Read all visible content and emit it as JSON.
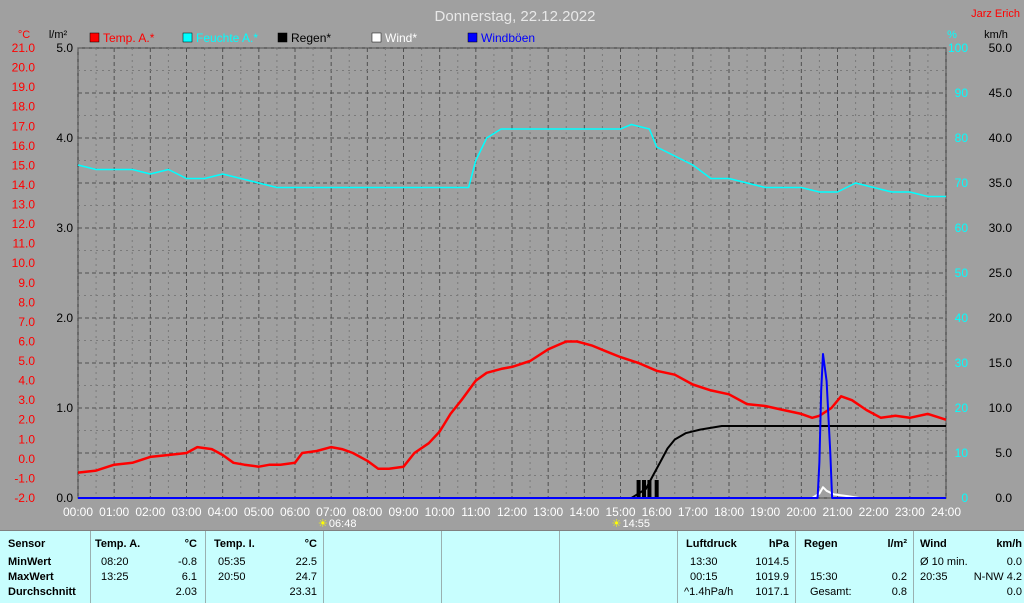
{
  "chart_data": {
    "type": "line",
    "title": "Donnerstag, 22.12.2022",
    "author": "Jarz Erich",
    "x_ticks": [
      "00:00",
      "01:00",
      "02:00",
      "03:00",
      "04:00",
      "05:00",
      "06:00",
      "07:00",
      "08:00",
      "09:00",
      "10:00",
      "11:00",
      "12:00",
      "13:00",
      "14:00",
      "15:00",
      "16:00",
      "17:00",
      "18:00",
      "19:00",
      "20:00",
      "21:00",
      "22:00",
      "23:00",
      "24:00"
    ],
    "axes": {
      "temp": {
        "label": "°C",
        "ylim": [
          -2.0,
          21.0
        ],
        "ticks": [
          "-2.0",
          "-1.0",
          "0.0",
          "1.0",
          "2.0",
          "3.0",
          "4.0",
          "5.0",
          "6.0",
          "7.0",
          "8.0",
          "9.0",
          "10.0",
          "11.0",
          "12.0",
          "13.0",
          "14.0",
          "15.0",
          "16.0",
          "17.0",
          "18.0",
          "19.0",
          "20.0",
          "21.0"
        ],
        "color": "#ff0000"
      },
      "rain": {
        "label": "l/m²",
        "ylim": [
          0,
          5.0
        ],
        "ticks": [
          "0.0",
          "1.0",
          "2.0",
          "3.0",
          "4.0",
          "5.0"
        ],
        "color": "#000000"
      },
      "humidity": {
        "label": "%",
        "ylim": [
          0,
          100
        ],
        "ticks": [
          "0",
          "10",
          "20",
          "30",
          "40",
          "50",
          "60",
          "70",
          "80",
          "90",
          "100"
        ],
        "color": "#00e0e0"
      },
      "wind": {
        "label": "km/h",
        "ylim": [
          0,
          50.0
        ],
        "ticks": [
          "0.0",
          "5.0",
          "10.0",
          "15.0",
          "20.0",
          "25.0",
          "30.0",
          "35.0",
          "40.0",
          "45.0",
          "50.0"
        ],
        "color": "#000000"
      }
    },
    "legend": [
      {
        "name": "Temp. A.*",
        "color": "#ff0000"
      },
      {
        "name": "Feuchte A.*",
        "color": "#00ffff"
      },
      {
        "name": "Regen*",
        "color": "#000000"
      },
      {
        "name": "Wind*",
        "color": "#ffffff"
      },
      {
        "name": "Windböen",
        "color": "#0000ff"
      }
    ],
    "sunrise": "06:48",
    "sunset": "14:55",
    "series": [
      {
        "name": "Temp. A.*",
        "axis": "temp",
        "color": "#ff0000",
        "points": [
          [
            0,
            -0.7
          ],
          [
            0.5,
            -0.6
          ],
          [
            1,
            -0.3
          ],
          [
            1.5,
            -0.2
          ],
          [
            2,
            0.1
          ],
          [
            2.5,
            0.2
          ],
          [
            3,
            0.3
          ],
          [
            3.3,
            0.6
          ],
          [
            3.7,
            0.5
          ],
          [
            4,
            0.2
          ],
          [
            4.3,
            -0.2
          ],
          [
            4.6,
            -0.3
          ],
          [
            5,
            -0.4
          ],
          [
            5.3,
            -0.3
          ],
          [
            5.6,
            -0.3
          ],
          [
            6,
            -0.2
          ],
          [
            6.2,
            0.3
          ],
          [
            6.6,
            0.4
          ],
          [
            7,
            0.6
          ],
          [
            7.3,
            0.5
          ],
          [
            7.6,
            0.3
          ],
          [
            8,
            -0.1
          ],
          [
            8.3,
            -0.5
          ],
          [
            8.6,
            -0.5
          ],
          [
            9,
            -0.4
          ],
          [
            9.3,
            0.3
          ],
          [
            9.7,
            0.8
          ],
          [
            10,
            1.4
          ],
          [
            10.3,
            2.3
          ],
          [
            10.6,
            3.0
          ],
          [
            11,
            4.0
          ],
          [
            11.3,
            4.4
          ],
          [
            11.7,
            4.6
          ],
          [
            12,
            4.7
          ],
          [
            12.5,
            5.0
          ],
          [
            13,
            5.6
          ],
          [
            13.25,
            5.8
          ],
          [
            13.5,
            6.0
          ],
          [
            13.8,
            6.0
          ],
          [
            14.2,
            5.8
          ],
          [
            14.6,
            5.5
          ],
          [
            15,
            5.2
          ],
          [
            15.5,
            4.9
          ],
          [
            16,
            4.5
          ],
          [
            16.5,
            4.3
          ],
          [
            17,
            3.8
          ],
          [
            17.5,
            3.5
          ],
          [
            18,
            3.3
          ],
          [
            18.5,
            2.8
          ],
          [
            19,
            2.7
          ],
          [
            19.5,
            2.5
          ],
          [
            20,
            2.3
          ],
          [
            20.3,
            2.1
          ],
          [
            20.5,
            2.2
          ],
          [
            20.83,
            2.6
          ],
          [
            21.1,
            3.2
          ],
          [
            21.4,
            3.0
          ],
          [
            21.8,
            2.5
          ],
          [
            22.2,
            2.1
          ],
          [
            22.6,
            2.2
          ],
          [
            23,
            2.1
          ],
          [
            23.5,
            2.3
          ],
          [
            24,
            2.0
          ]
        ]
      },
      {
        "name": "Feuchte A.*",
        "axis": "humidity",
        "color": "#00ffff",
        "points": [
          [
            0,
            74
          ],
          [
            0.5,
            73
          ],
          [
            1,
            73
          ],
          [
            1.5,
            73
          ],
          [
            2,
            72
          ],
          [
            2.5,
            73
          ],
          [
            3,
            71
          ],
          [
            3.5,
            71
          ],
          [
            4,
            72
          ],
          [
            4.5,
            71
          ],
          [
            5,
            70
          ],
          [
            5.5,
            69
          ],
          [
            6,
            69
          ],
          [
            7,
            69
          ],
          [
            8,
            69
          ],
          [
            9,
            69
          ],
          [
            10,
            69
          ],
          [
            10.8,
            69
          ],
          [
            11,
            75
          ],
          [
            11.3,
            80
          ],
          [
            11.7,
            82
          ],
          [
            12,
            82
          ],
          [
            12.5,
            82
          ],
          [
            13,
            82
          ],
          [
            13.5,
            82
          ],
          [
            14,
            82
          ],
          [
            14.5,
            82
          ],
          [
            15,
            82
          ],
          [
            15.3,
            83
          ],
          [
            15.8,
            82
          ],
          [
            16,
            78
          ],
          [
            16.5,
            76
          ],
          [
            17,
            74
          ],
          [
            17.5,
            71
          ],
          [
            18,
            71
          ],
          [
            18.5,
            70
          ],
          [
            19,
            69
          ],
          [
            19.5,
            69
          ],
          [
            20,
            69
          ],
          [
            20.5,
            68
          ],
          [
            21,
            68
          ],
          [
            21.5,
            70
          ],
          [
            22,
            69
          ],
          [
            22.5,
            68
          ],
          [
            23,
            68
          ],
          [
            23.5,
            67
          ],
          [
            24,
            67
          ]
        ]
      },
      {
        "name": "Regen*",
        "axis": "rain",
        "color": "#000000",
        "points": [
          [
            0,
            0
          ],
          [
            15.3,
            0
          ],
          [
            15.5,
            0.05
          ],
          [
            15.7,
            0.1
          ],
          [
            15.9,
            0.25
          ],
          [
            16.1,
            0.4
          ],
          [
            16.3,
            0.55
          ],
          [
            16.5,
            0.65
          ],
          [
            16.8,
            0.72
          ],
          [
            17.2,
            0.76
          ],
          [
            17.8,
            0.8
          ],
          [
            18.5,
            0.8
          ],
          [
            19,
            0.8
          ],
          [
            24,
            0.8
          ]
        ]
      },
      {
        "name": "Wind*",
        "axis": "wind",
        "color": "#ffffff",
        "points": [
          [
            0,
            0
          ],
          [
            20.3,
            0
          ],
          [
            20.5,
            0.5
          ],
          [
            20.6,
            1.2
          ],
          [
            20.7,
            0.8
          ],
          [
            20.9,
            0.4
          ],
          [
            21.3,
            0.2
          ],
          [
            21.6,
            0
          ],
          [
            24,
            0
          ]
        ]
      },
      {
        "name": "Windböen",
        "axis": "wind",
        "color": "#0000ff",
        "points": [
          [
            0,
            0
          ],
          [
            20.45,
            0
          ],
          [
            20.5,
            4
          ],
          [
            20.55,
            12
          ],
          [
            20.6,
            16.0
          ],
          [
            20.7,
            13
          ],
          [
            20.8,
            5
          ],
          [
            20.85,
            0
          ],
          [
            24,
            0
          ]
        ]
      }
    ],
    "rain_bars": {
      "axis": "rain",
      "color": "#000000",
      "bars": [
        [
          15.5,
          0.2
        ],
        [
          15.65,
          0.2
        ],
        [
          15.8,
          0.2
        ],
        [
          16,
          0.2
        ]
      ]
    }
  },
  "stats": {
    "sensor": {
      "header": "Sensor",
      "rows": [
        "MinWert",
        "MaxWert",
        "Durchschnitt"
      ]
    },
    "temp_a": {
      "header": "Temp. A.",
      "unit": "°C",
      "min_time": "08:20",
      "min_val": "-0.8",
      "max_time": "13:25",
      "max_val": "6.1",
      "avg": "2.03"
    },
    "temp_i": {
      "header": "Temp. I.",
      "unit": "°C",
      "min_time": "05:35",
      "min_val": "22.5",
      "max_time": "20:50",
      "max_val": "24.7",
      "avg": "23.31"
    },
    "pressure": {
      "header": "Luftdruck",
      "unit": "hPa",
      "min_time": "13:30",
      "min_val": "1014.5",
      "max_time": "00:15",
      "max_val": "1019.9",
      "trend": "^1.4hPa/h",
      "trend_val": "1017.1"
    },
    "rain": {
      "header": "Regen",
      "unit": "l/m²",
      "max_time": "15:30",
      "max_val": "0.2",
      "total_label": "Gesamt:",
      "total": "0.8"
    },
    "wind": {
      "header": "Wind",
      "unit": "km/h",
      "avg_label": "Ø 10 min.",
      "avg": "0.0",
      "max_time": "20:35",
      "max_val": "N-NW 4.2",
      "last": "0.0"
    }
  }
}
